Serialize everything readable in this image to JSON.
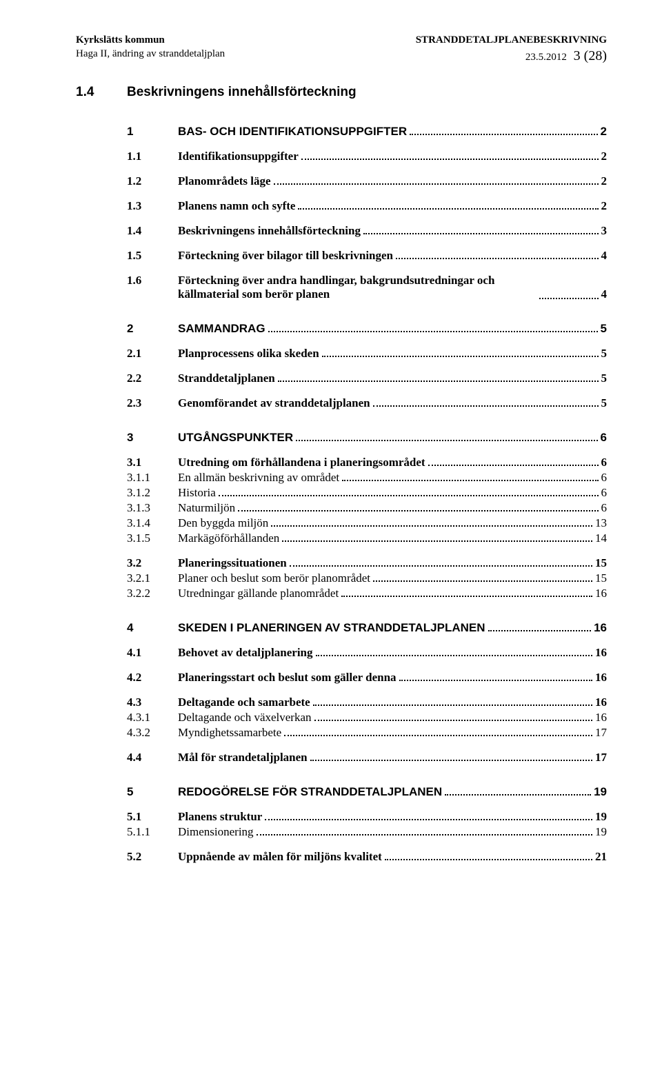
{
  "header": {
    "left_line1": "Kyrkslätts kommun",
    "left_line2": "Haga II, ändring av stranddetaljplan",
    "right_line1": "STRANDDETALJPLANEBESKRIVNING",
    "right_date": "23.5.2012",
    "right_pagecount": "3 (28)"
  },
  "section": {
    "num": "1.4",
    "title": "Beskrivningens innehållsförteckning"
  },
  "toc": [
    {
      "lvl": 1,
      "num": "1",
      "label": "BAS- OCH IDENTIFIKATIONSUPPGIFTER",
      "page": "2",
      "gap": true
    },
    {
      "lvl": 2,
      "num": "1.1",
      "label": "Identifikationsuppgifter",
      "page": "2",
      "gap": true
    },
    {
      "lvl": 2,
      "num": "1.2",
      "label": "Planområdets läge",
      "page": "2",
      "gap": true
    },
    {
      "lvl": 2,
      "num": "1.3",
      "label": "Planens namn och syfte",
      "page": "2",
      "gap": true
    },
    {
      "lvl": 2,
      "num": "1.4",
      "label": "Beskrivningens innehållsförteckning",
      "page": "3",
      "gap": true
    },
    {
      "lvl": 2,
      "num": "1.5",
      "label": "Förteckning över bilagor till beskrivningen",
      "page": "4",
      "gap": true
    },
    {
      "lvl": 2,
      "num": "1.6",
      "label": "Förteckning över andra handlingar, bakgrundsutredningar och källmaterial som berör planen",
      "page": "4",
      "gap": true,
      "multi": true
    },
    {
      "lvl": 1,
      "num": "2",
      "label": "SAMMANDRAG",
      "page": "5",
      "gap": true
    },
    {
      "lvl": 2,
      "num": "2.1",
      "label": "Planprocessens olika skeden",
      "page": "5",
      "gap": true
    },
    {
      "lvl": 2,
      "num": "2.2",
      "label": "Stranddetaljplanen",
      "page": "5",
      "gap": true
    },
    {
      "lvl": 2,
      "num": "2.3",
      "label": "Genomförandet av stranddetaljplanen",
      "page": "5",
      "gap": true
    },
    {
      "lvl": 1,
      "num": "3",
      "label": "UTGÅNGSPUNKTER",
      "page": "6",
      "gap": true
    },
    {
      "lvl": 2,
      "num": "3.1",
      "label": "Utredning om förhållandena i planeringsområdet",
      "page": "6",
      "gap": true
    },
    {
      "lvl": 3,
      "num": "3.1.1",
      "label": "En allmän beskrivning av området",
      "page": "6"
    },
    {
      "lvl": 3,
      "num": "3.1.2",
      "label": "Historia",
      "page": "6"
    },
    {
      "lvl": 3,
      "num": "3.1.3",
      "label": "Naturmiljön",
      "page": "6"
    },
    {
      "lvl": 3,
      "num": "3.1.4",
      "label": "Den byggda miljön",
      "page": "13"
    },
    {
      "lvl": 3,
      "num": "3.1.5",
      "label": "Markägöförhållanden",
      "page": "14"
    },
    {
      "lvl": 2,
      "num": "3.2",
      "label": "Planeringssituationen",
      "page": "15",
      "gap": true
    },
    {
      "lvl": 3,
      "num": "3.2.1",
      "label": "Planer och beslut som berör planområdet",
      "page": "15"
    },
    {
      "lvl": 3,
      "num": "3.2.2",
      "label": "Utredningar gällande planområdet",
      "page": "16"
    },
    {
      "lvl": 1,
      "num": "4",
      "label": "SKEDEN I PLANERINGEN AV STRANDDETALJPLANEN",
      "page": "16",
      "gap": true
    },
    {
      "lvl": 2,
      "num": "4.1",
      "label": "Behovet av detaljplanering",
      "page": "16",
      "gap": true
    },
    {
      "lvl": 2,
      "num": "4.2",
      "label": "Planeringsstart och beslut som gäller denna",
      "page": "16",
      "gap": true
    },
    {
      "lvl": 2,
      "num": "4.3",
      "label": "Deltagande och samarbete",
      "page": "16",
      "gap": true
    },
    {
      "lvl": 3,
      "num": "4.3.1",
      "label": "Deltagande och växelverkan",
      "page": "16"
    },
    {
      "lvl": 3,
      "num": "4.3.2",
      "label": "Myndighetssamarbete",
      "page": "17"
    },
    {
      "lvl": 2,
      "num": "4.4",
      "label": "Mål för strandetaljplanen",
      "page": "17",
      "gap": true
    },
    {
      "lvl": 1,
      "num": "5",
      "label": "REDOGÖRELSE FÖR STRANDDETALJPLANEN",
      "page": "19",
      "gap": true
    },
    {
      "lvl": 2,
      "num": "5.1",
      "label": "Planens struktur",
      "page": "19",
      "gap": true
    },
    {
      "lvl": 3,
      "num": "5.1.1",
      "label": "Dimensionering",
      "page": "19"
    },
    {
      "lvl": 2,
      "num": "5.2",
      "label": "Uppnående av målen för miljöns kvalitet",
      "page": "21",
      "gap": true
    }
  ]
}
